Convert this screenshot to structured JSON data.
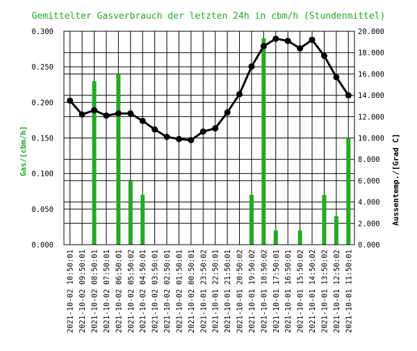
{
  "chart_data": {
    "type": "bar",
    "title": "Gemittelter Gasverbrauch der letzten 24h in cbm/h (Stundenmittel)",
    "ylabel": "Gas/[cbm/h]",
    "y2label": "Aussentemp./[Grad C]",
    "ylim": [
      0,
      0.3
    ],
    "y2lim": [
      0,
      20
    ],
    "yticks": [
      "0.000",
      "0.050",
      "0.100",
      "0.150",
      "0.200",
      "0.250",
      "0.300"
    ],
    "y2ticks": [
      "0.000",
      "2.000",
      "4.000",
      "6.000",
      "8.000",
      "10.000",
      "12.000",
      "14.000",
      "16.000",
      "18.000",
      "20.000"
    ],
    "grid": true,
    "categories": [
      "2021-10-02 10:50:01",
      "2021-10-02 09:50:01",
      "2021-10-02 08:50:01",
      "2021-10-02 07:50:01",
      "2021-10-02 06:50:01",
      "2021-10-02 05:50:02",
      "2021-10-02 04:50:01",
      "2021-10-02 03:50:01",
      "2021-10-02 02:50:01",
      "2021-10-02 01:50:01",
      "2021-10-02 00:50:01",
      "2021-10-01 23:50:02",
      "2021-10-01 22:50:01",
      "2021-10-01 21:50:01",
      "2021-10-01 20:50:02",
      "2021-10-01 19:50:02",
      "2021-10-01 18:50:02",
      "2021-10-01 17:50:01",
      "2021-10-01 16:50:01",
      "2021-10-01 15:50:02",
      "2021-10-01 14:50:02",
      "2021-10-01 13:50:02",
      "2021-10-01 12:50:02",
      "2021-10-01 11:50:01"
    ],
    "series": [
      {
        "axis": "left",
        "kind": "bar",
        "color": "#22aa22",
        "values": [
          0,
          0,
          0.23,
          0,
          0.24,
          0.09,
          0.07,
          0,
          0,
          0,
          0,
          0,
          0,
          0,
          0,
          0.07,
          0.29,
          0.02,
          0,
          0.02,
          0,
          0.07,
          0.04,
          0.15
        ]
      },
      {
        "axis": "right",
        "kind": "line",
        "color": "#000000",
        "values": [
          13.5,
          12.2,
          12.6,
          12.1,
          12.3,
          12.3,
          11.6,
          10.8,
          10.1,
          9.9,
          9.8,
          10.6,
          10.9,
          12.4,
          14.1,
          16.7,
          18.6,
          19.3,
          19.1,
          18.4,
          19.2,
          17.7,
          15.7,
          14.0
        ]
      }
    ]
  },
  "colors": {
    "title": "#22aa22",
    "left_axis_title": "#22aa22",
    "right_axis_title": "#000000",
    "grid": "#000000"
  }
}
